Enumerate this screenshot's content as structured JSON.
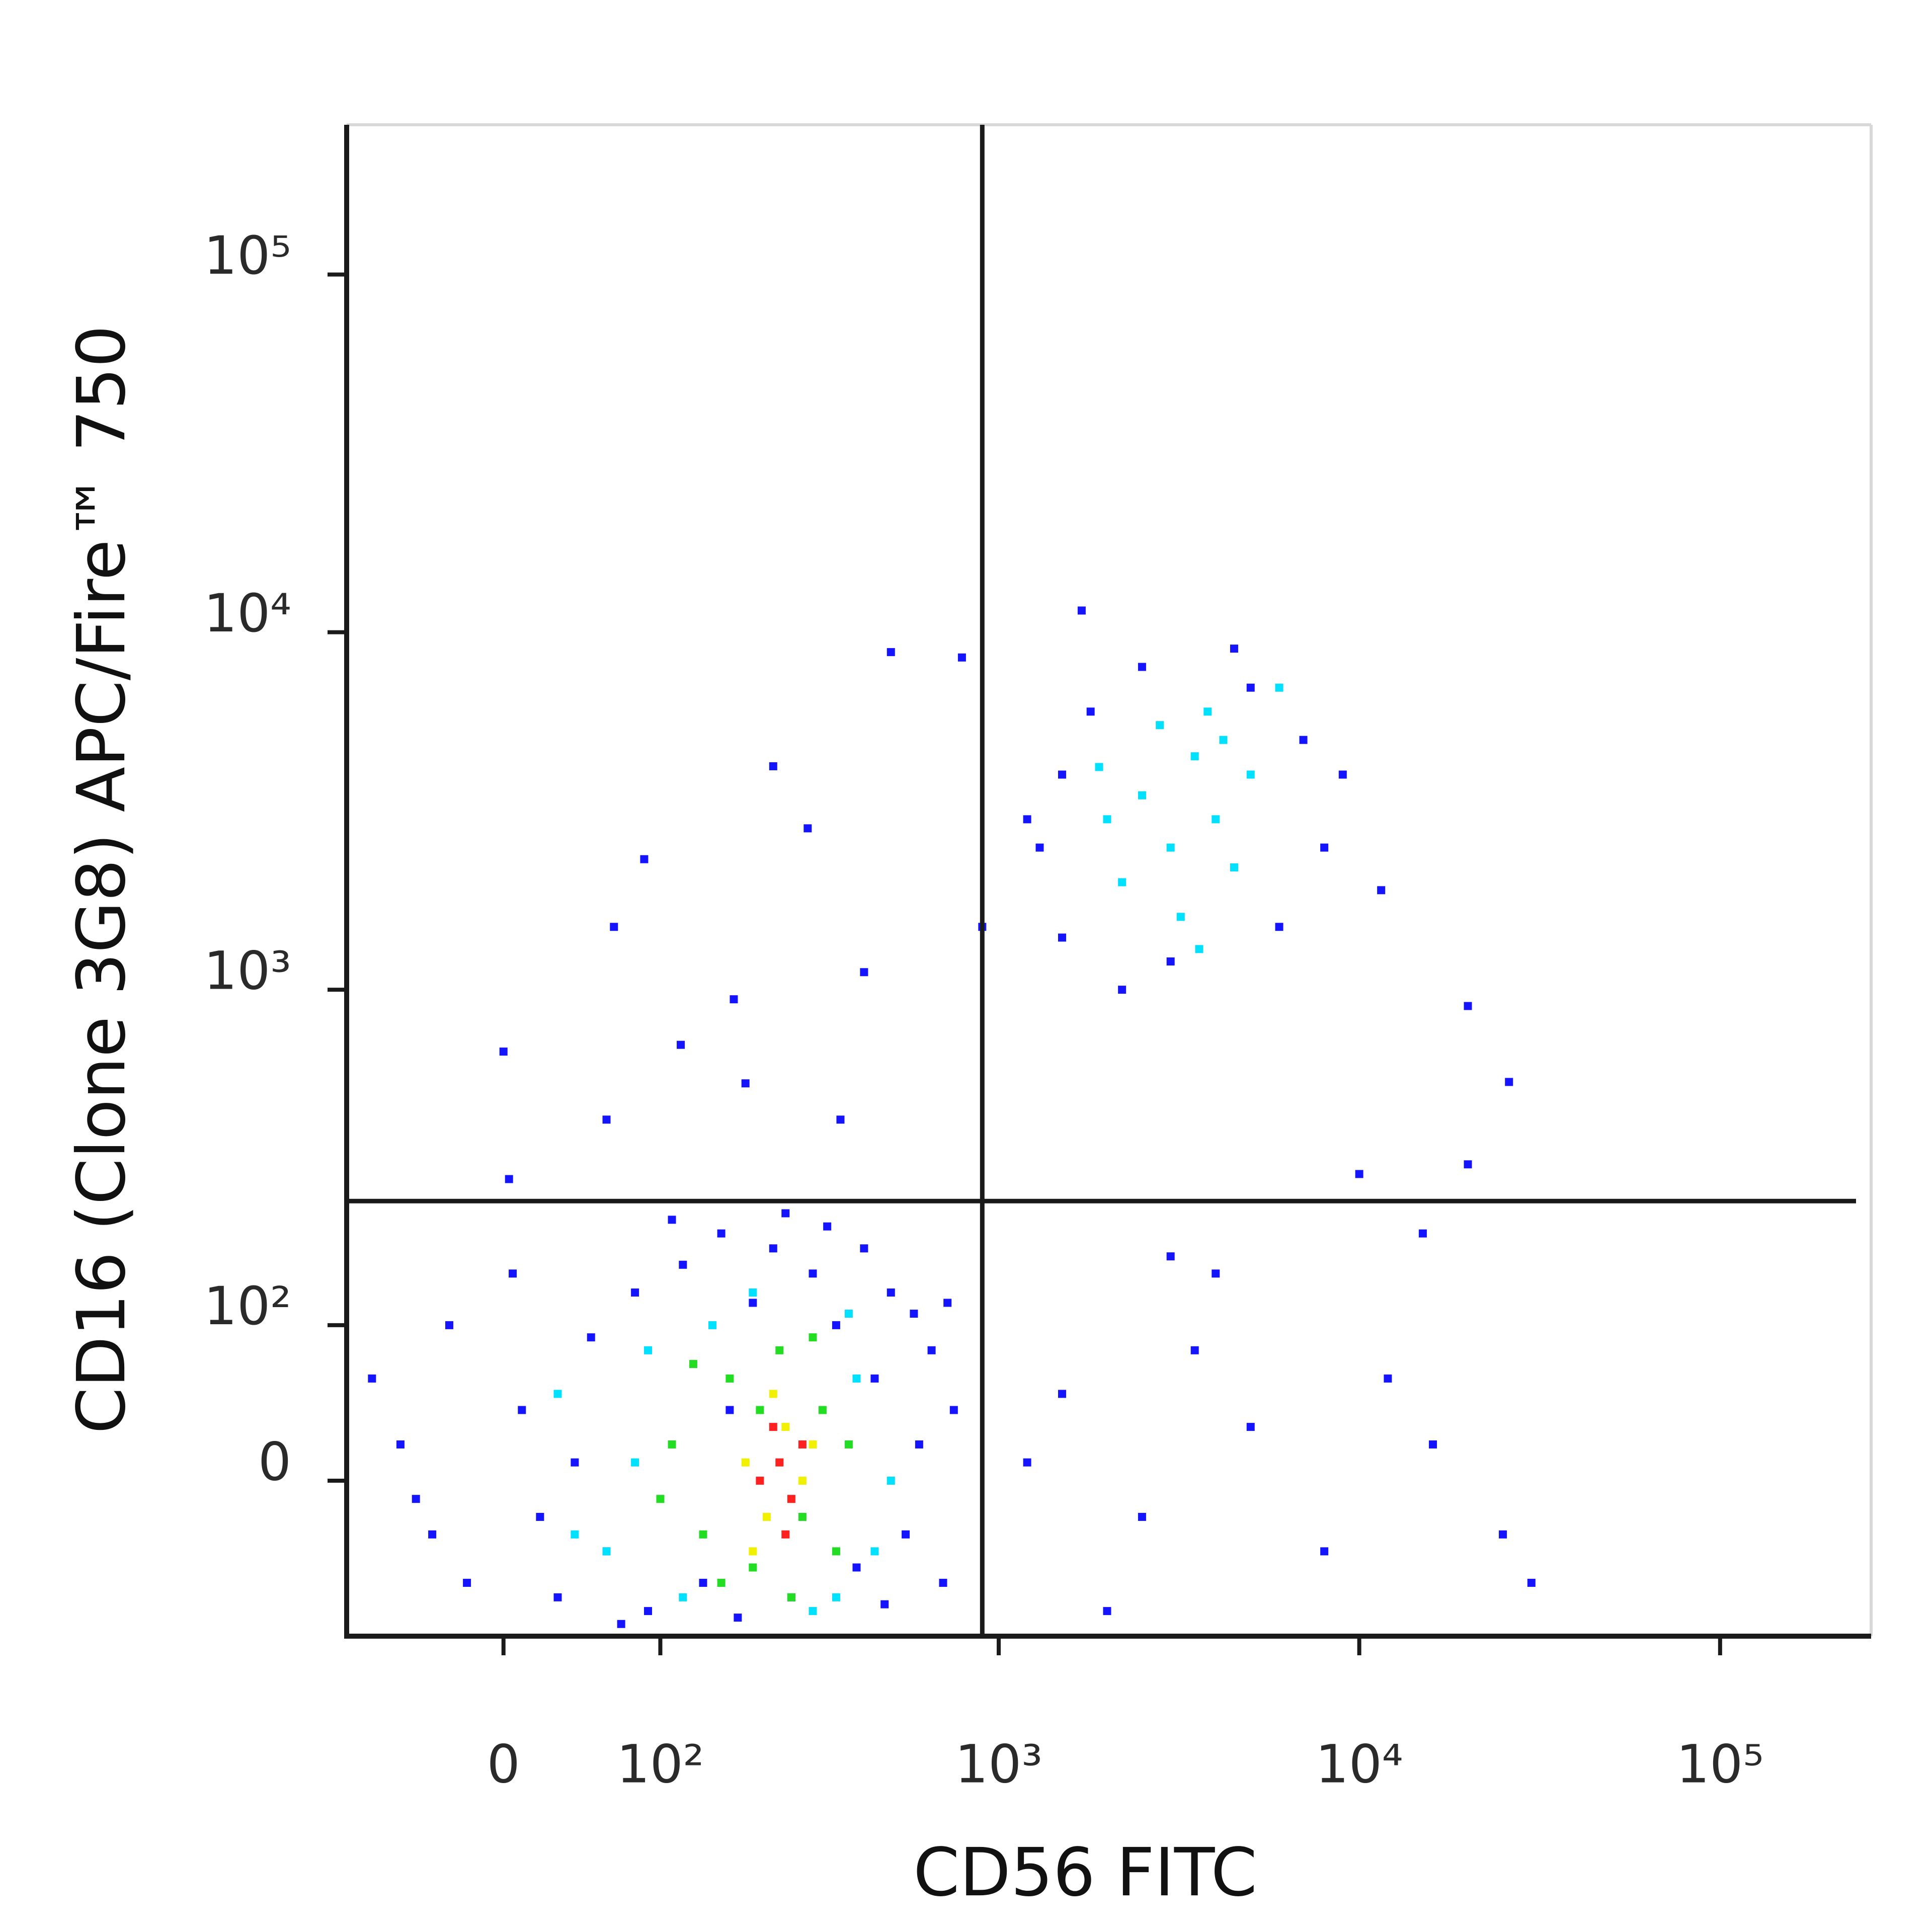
{
  "chart_data": {
    "type": "scatter",
    "x_label": "CD56 FITC",
    "y_label": "CD16 (Clone 3G8) APC/Fire™ 750",
    "xscale": "biexponential",
    "yscale": "biexponential",
    "xlim": [
      -100,
      262144
    ],
    "ylim": [
      -100,
      262144
    ],
    "xticks": [
      0,
      {
        "value": 100,
        "label": "10²"
      },
      {
        "value": 1000,
        "label": "10³"
      },
      {
        "value": 10000,
        "label": "10⁴"
      },
      {
        "value": 100000,
        "label": "10⁵"
      }
    ],
    "yticks": [
      0,
      {
        "value": 100,
        "label": "10²"
      },
      {
        "value": 1000,
        "label": "10³"
      },
      {
        "value": 10000,
        "label": "10⁴"
      },
      {
        "value": 100000,
        "label": "10⁵"
      }
    ],
    "quadrant_gate": {
      "x": 900,
      "y": 250
    },
    "series": [
      {
        "color": "#1414ff",
        "x": [
          -60,
          -40,
          -80,
          -20,
          10,
          30,
          50,
          60,
          80,
          90,
          120,
          140,
          160,
          180,
          200,
          230,
          260,
          300,
          350,
          400,
          450,
          500,
          550,
          600,
          650,
          700,
          750,
          40,
          20,
          -50,
          110,
          250,
          330,
          70,
          420,
          480,
          580,
          170,
          -30,
          5,
          720,
          87,
          500,
          230,
          65,
          0,
          175,
          420,
          118,
          360,
          60,
          790,
          290,
          190,
          3,
          1300,
          1500,
          1800,
          2500,
          5000,
          7000,
          8000,
          6000,
          3000,
          1500,
          1200,
          4500,
          9000,
          2200,
          1700,
          11500,
          20000,
          26000,
          900,
          1500,
          2500,
          3500,
          5000,
          8000,
          12000,
          16000,
          25000,
          30000,
          2000,
          1200,
          4000,
          10000,
          15000,
          20000,
          3000
        ],
        "values": [
          20,
          -30,
          60,
          -60,
          40,
          -70,
          90,
          -40,
          130,
          -80,
          160,
          -60,
          200,
          -85,
          120,
          180,
          -70,
          150,
          100,
          -50,
          60,
          130,
          -30,
          20,
          80,
          -60,
          40,
          10,
          -20,
          -10,
          220,
          230,
          210,
          -90,
          180,
          -75,
          110,
          40,
          100,
          150,
          120,
          2320,
          8800,
          4220,
          1500,
          670,
          940,
          1120,
          700,
          430,
          430,
          8500,
          2830,
          545,
          290,
          2500,
          4000,
          6000,
          8000,
          7000,
          5000,
          2500,
          1500,
          1200,
          1400,
          3000,
          9000,
          4000,
          1000,
          11500,
          1900,
          900,
          550,
          1500,
          50,
          -20,
          80,
          30,
          -40,
          60,
          20,
          -30,
          -60,
          -80,
          10,
          150,
          300,
          200,
          320,
          170
        ]
      },
      {
        "color": "#00e0ff",
        "x": [
          2500,
          3000,
          3500,
          4000,
          2200,
          4500,
          3200,
          2800,
          5000,
          3800,
          2000,
          3600,
          4200,
          6000,
          1900,
          30,
          60,
          90,
          120,
          150,
          400,
          450,
          380,
          80,
          500,
          350,
          200,
          40,
          300
        ],
        "values": [
          3500,
          2500,
          4500,
          3000,
          2000,
          2200,
          1600,
          5500,
          4000,
          6000,
          3000,
          1300,
          5000,
          7000,
          4200,
          50,
          -40,
          80,
          -70,
          100,
          60,
          -40,
          110,
          10,
          0,
          -70,
          130,
          -30,
          -80
        ]
      },
      {
        "color": "#22dd22",
        "x": [
          110,
          140,
          170,
          200,
          240,
          280,
          320,
          350,
          130,
          160,
          300,
          260,
          100,
          380,
          210
        ],
        "values": [
          20,
          -30,
          60,
          -50,
          80,
          -20,
          40,
          -40,
          70,
          -60,
          90,
          -70,
          -10,
          20,
          40
        ]
      },
      {
        "color": "#f0f000",
        "x": [
          190,
          220,
          250,
          280,
          230,
          200,
          300
        ],
        "values": [
          10,
          -20,
          30,
          0,
          50,
          -40,
          20
        ]
      },
      {
        "color": "#ff2020",
        "x": [
          210,
          240,
          260,
          230,
          280,
          250
        ],
        "values": [
          0,
          10,
          -10,
          30,
          20,
          -30
        ]
      }
    ]
  }
}
